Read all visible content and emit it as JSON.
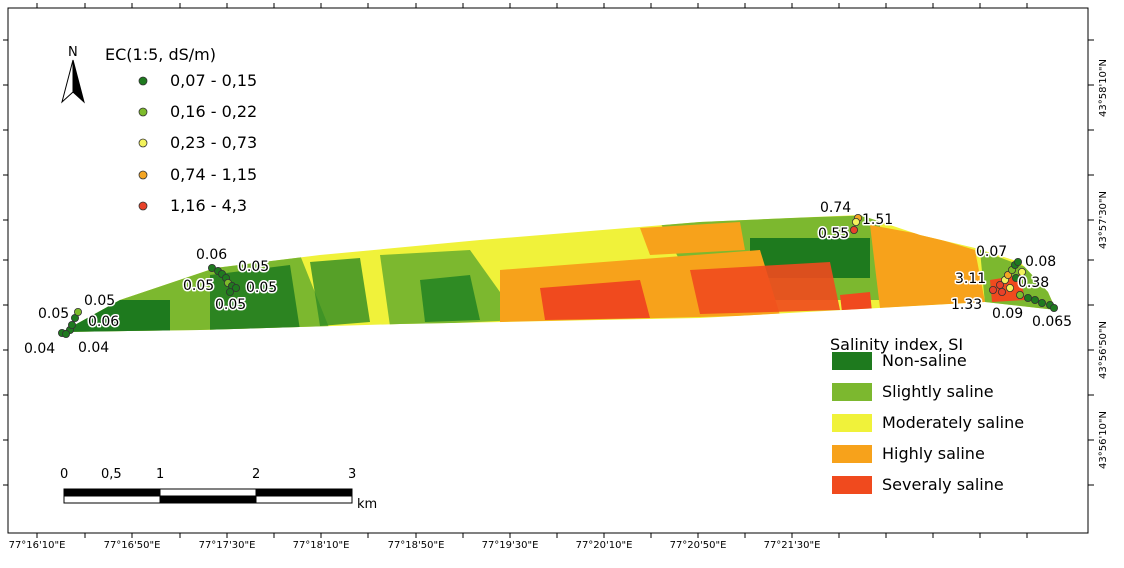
{
  "map": {
    "north_label": "N",
    "ec_legend": {
      "title": "EC(1:5, dS/m)",
      "classes": [
        {
          "label": "0,07 - 0,15",
          "color": "#1f7a1f"
        },
        {
          "label": "0,16 - 0,22",
          "color": "#7dbb2b"
        },
        {
          "label": "0,23 - 0,73",
          "color": "#f2f25c"
        },
        {
          "label": "0,74 - 1,15",
          "color": "#f5a623"
        },
        {
          "label": "1,16 - 4,3",
          "color": "#e8422a"
        }
      ]
    },
    "si_legend": {
      "title": "Salinity index, SI",
      "classes": [
        {
          "label": "Non-saline",
          "color": "#1e7a1e"
        },
        {
          "label": "Slightly saline",
          "color": "#7cb82f"
        },
        {
          "label": "Moderately saline",
          "color": "#f0f23a"
        },
        {
          "label": "Highly saline",
          "color": "#f7a21b"
        },
        {
          "label": "Severaly saline",
          "color": "#f04a1e"
        }
      ]
    },
    "scale_bar": {
      "ticks": [
        "0",
        "0,5",
        "1",
        "2",
        "3"
      ],
      "unit": "km"
    },
    "longitude_labels": [
      "77°16'10\"E",
      "77°16'50\"E",
      "77°17'30\"E",
      "77°18'10\"E",
      "77°18'50\"E",
      "77°19'30\"E",
      "77°20'10\"E",
      "77°20'50\"E",
      "77°21'30\"E"
    ],
    "latitude_labels": [
      "43°58'10\"N",
      "43°57'30\"N",
      "43°56'50\"N",
      "43°56'10\"N"
    ],
    "point_labels": [
      "0.05",
      "0.05",
      "0.06",
      "0.04",
      "0.04",
      "0.06",
      "0.05",
      "0.05",
      "0.05",
      "0.05",
      "0.74",
      "1.51",
      "0.55",
      "0.07",
      "0.08",
      "3.11",
      "0.38",
      "1.33",
      "0.09",
      "0.065"
    ]
  }
}
